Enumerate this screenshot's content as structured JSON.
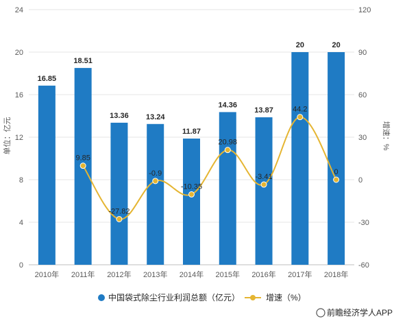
{
  "chart_data": {
    "type": "bar",
    "categories": [
      "2010年",
      "2011年",
      "2012年",
      "2013年",
      "2014年",
      "2015年",
      "2016年",
      "2017年",
      "2018年"
    ],
    "series": [
      {
        "name": "中国袋式除尘行业利润总额（亿元）",
        "type": "bar",
        "axis": "left",
        "values": [
          16.85,
          18.51,
          13.36,
          13.24,
          11.87,
          14.36,
          13.87,
          20,
          20
        ],
        "labels": [
          "16.85",
          "18.51",
          "13.36",
          "13.24",
          "11.87",
          "14.36",
          "13.87",
          "20",
          "20"
        ]
      },
      {
        "name": "增速（%）",
        "type": "line",
        "axis": "right",
        "values": [
          null,
          9.85,
          -27.82,
          -0.9,
          -10.35,
          20.98,
          -3.41,
          44.2,
          0
        ],
        "labels": [
          "",
          "9.85",
          "-27.82",
          "-0.9",
          "-10.35",
          "20.98",
          "-3.41",
          "44.2",
          "0"
        ]
      }
    ],
    "ylabel": "单位：亿元",
    "y2label": "增速：%",
    "ylim": [
      0,
      24
    ],
    "y_ticks": [
      "0",
      "4",
      "8",
      "12",
      "16",
      "20",
      "24"
    ],
    "y2lim": [
      -60,
      120
    ],
    "y2_ticks": [
      "-60",
      "-30",
      "0",
      "30",
      "60",
      "90",
      "120"
    ],
    "grid": true,
    "legend": "bottom",
    "colors": {
      "bar": "#1f7bc4",
      "line": "#e5b532"
    }
  },
  "source": "前瞻经济学人APP"
}
